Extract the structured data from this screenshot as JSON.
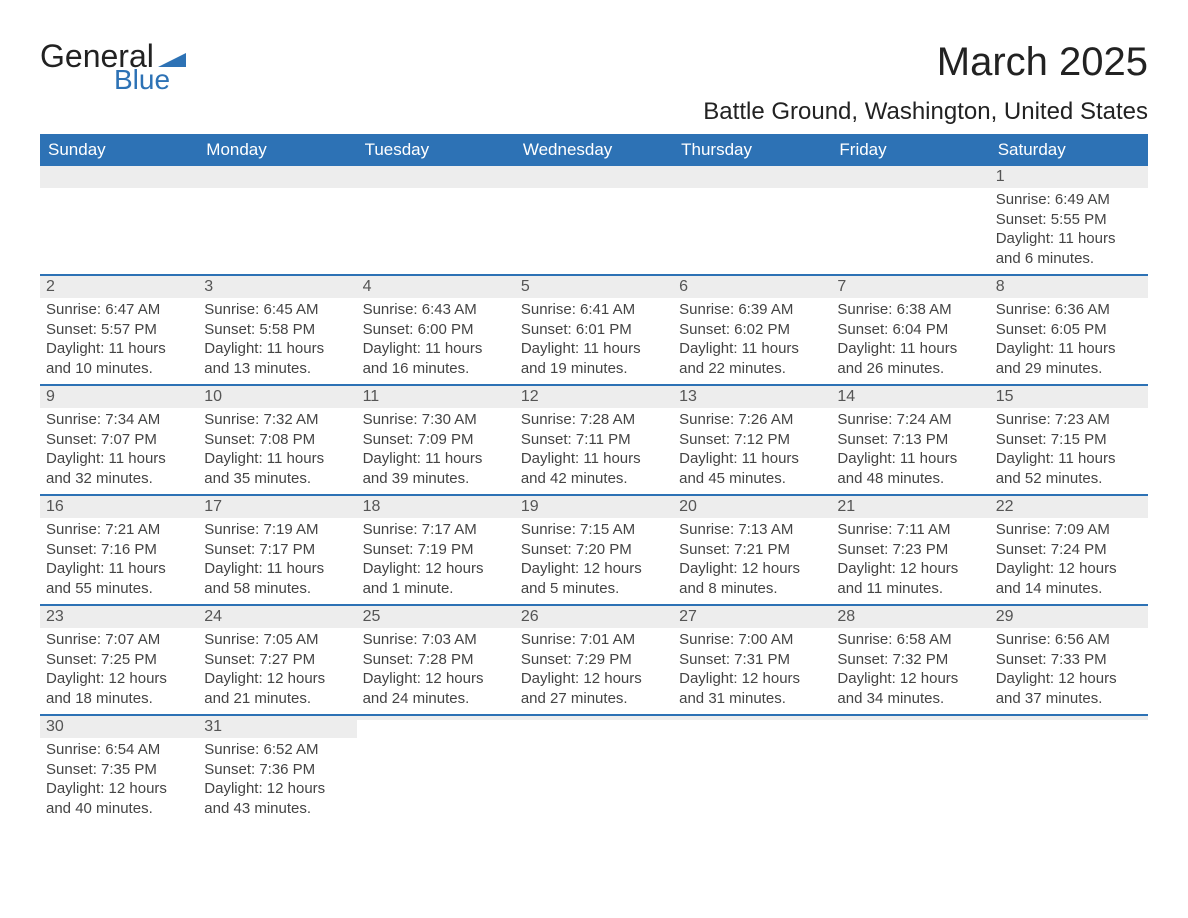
{
  "logo": {
    "word1": "General",
    "word2": "Blue",
    "accent_color": "#2d72b5"
  },
  "title": "March 2025",
  "subtitle": "Battle Ground, Washington, United States",
  "colors": {
    "header_bg": "#2d72b5",
    "header_text": "#ffffff",
    "daynum_bg": "#ededed",
    "row_border": "#2d72b5",
    "body_text": "#444444"
  },
  "weekdays": [
    "Sunday",
    "Monday",
    "Tuesday",
    "Wednesday",
    "Thursday",
    "Friday",
    "Saturday"
  ],
  "weeks": [
    [
      null,
      null,
      null,
      null,
      null,
      null,
      {
        "n": "1",
        "sunrise": "6:49 AM",
        "sunset": "5:55 PM",
        "day": "11 hours and 6 minutes."
      }
    ],
    [
      {
        "n": "2",
        "sunrise": "6:47 AM",
        "sunset": "5:57 PM",
        "day": "11 hours and 10 minutes."
      },
      {
        "n": "3",
        "sunrise": "6:45 AM",
        "sunset": "5:58 PM",
        "day": "11 hours and 13 minutes."
      },
      {
        "n": "4",
        "sunrise": "6:43 AM",
        "sunset": "6:00 PM",
        "day": "11 hours and 16 minutes."
      },
      {
        "n": "5",
        "sunrise": "6:41 AM",
        "sunset": "6:01 PM",
        "day": "11 hours and 19 minutes."
      },
      {
        "n": "6",
        "sunrise": "6:39 AM",
        "sunset": "6:02 PM",
        "day": "11 hours and 22 minutes."
      },
      {
        "n": "7",
        "sunrise": "6:38 AM",
        "sunset": "6:04 PM",
        "day": "11 hours and 26 minutes."
      },
      {
        "n": "8",
        "sunrise": "6:36 AM",
        "sunset": "6:05 PM",
        "day": "11 hours and 29 minutes."
      }
    ],
    [
      {
        "n": "9",
        "sunrise": "7:34 AM",
        "sunset": "7:07 PM",
        "day": "11 hours and 32 minutes."
      },
      {
        "n": "10",
        "sunrise": "7:32 AM",
        "sunset": "7:08 PM",
        "day": "11 hours and 35 minutes."
      },
      {
        "n": "11",
        "sunrise": "7:30 AM",
        "sunset": "7:09 PM",
        "day": "11 hours and 39 minutes."
      },
      {
        "n": "12",
        "sunrise": "7:28 AM",
        "sunset": "7:11 PM",
        "day": "11 hours and 42 minutes."
      },
      {
        "n": "13",
        "sunrise": "7:26 AM",
        "sunset": "7:12 PM",
        "day": "11 hours and 45 minutes."
      },
      {
        "n": "14",
        "sunrise": "7:24 AM",
        "sunset": "7:13 PM",
        "day": "11 hours and 48 minutes."
      },
      {
        "n": "15",
        "sunrise": "7:23 AM",
        "sunset": "7:15 PM",
        "day": "11 hours and 52 minutes."
      }
    ],
    [
      {
        "n": "16",
        "sunrise": "7:21 AM",
        "sunset": "7:16 PM",
        "day": "11 hours and 55 minutes."
      },
      {
        "n": "17",
        "sunrise": "7:19 AM",
        "sunset": "7:17 PM",
        "day": "11 hours and 58 minutes."
      },
      {
        "n": "18",
        "sunrise": "7:17 AM",
        "sunset": "7:19 PM",
        "day": "12 hours and 1 minute."
      },
      {
        "n": "19",
        "sunrise": "7:15 AM",
        "sunset": "7:20 PM",
        "day": "12 hours and 5 minutes."
      },
      {
        "n": "20",
        "sunrise": "7:13 AM",
        "sunset": "7:21 PM",
        "day": "12 hours and 8 minutes."
      },
      {
        "n": "21",
        "sunrise": "7:11 AM",
        "sunset": "7:23 PM",
        "day": "12 hours and 11 minutes."
      },
      {
        "n": "22",
        "sunrise": "7:09 AM",
        "sunset": "7:24 PM",
        "day": "12 hours and 14 minutes."
      }
    ],
    [
      {
        "n": "23",
        "sunrise": "7:07 AM",
        "sunset": "7:25 PM",
        "day": "12 hours and 18 minutes."
      },
      {
        "n": "24",
        "sunrise": "7:05 AM",
        "sunset": "7:27 PM",
        "day": "12 hours and 21 minutes."
      },
      {
        "n": "25",
        "sunrise": "7:03 AM",
        "sunset": "7:28 PM",
        "day": "12 hours and 24 minutes."
      },
      {
        "n": "26",
        "sunrise": "7:01 AM",
        "sunset": "7:29 PM",
        "day": "12 hours and 27 minutes."
      },
      {
        "n": "27",
        "sunrise": "7:00 AM",
        "sunset": "7:31 PM",
        "day": "12 hours and 31 minutes."
      },
      {
        "n": "28",
        "sunrise": "6:58 AM",
        "sunset": "7:32 PM",
        "day": "12 hours and 34 minutes."
      },
      {
        "n": "29",
        "sunrise": "6:56 AM",
        "sunset": "7:33 PM",
        "day": "12 hours and 37 minutes."
      }
    ],
    [
      {
        "n": "30",
        "sunrise": "6:54 AM",
        "sunset": "7:35 PM",
        "day": "12 hours and 40 minutes."
      },
      {
        "n": "31",
        "sunrise": "6:52 AM",
        "sunset": "7:36 PM",
        "day": "12 hours and 43 minutes."
      },
      null,
      null,
      null,
      null,
      null
    ]
  ],
  "labels": {
    "sunrise": "Sunrise: ",
    "sunset": "Sunset: ",
    "daylight": "Daylight: "
  }
}
